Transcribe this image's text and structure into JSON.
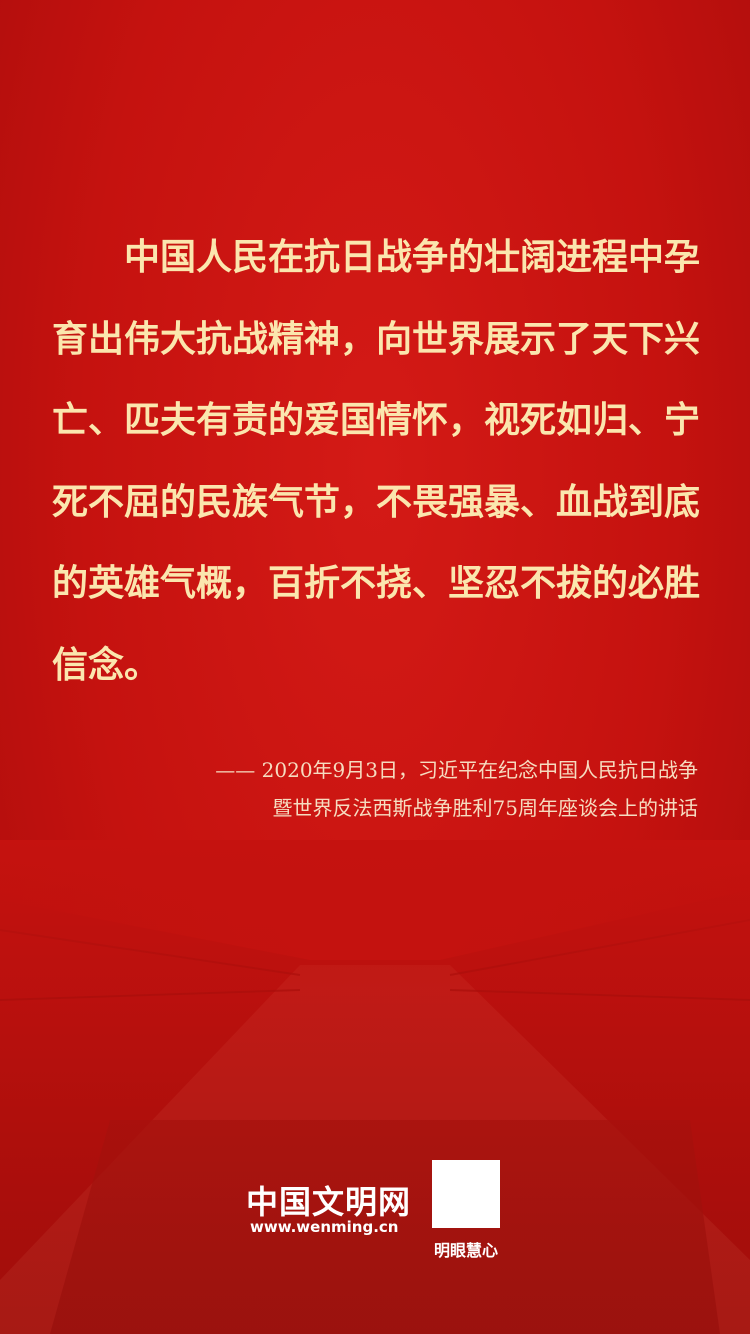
{
  "quote": {
    "lines": [
      "中国人民在抗日战争的壮阔进程中孕",
      "育出伟大抗战精神，向世界展示了天下兴",
      "亡、匹夫有责的爱国情怀，视死如归、宁",
      "死不屈的民族气节，不畏强暴、血战到底",
      "的英雄气概，百折不挠、坚忍不拔的必胜",
      "信念。"
    ]
  },
  "source": {
    "lines": [
      "—— 2020年9月3日，习近平在纪念中国人民抗日战争",
      "暨世界反法西斯战争胜利75周年座谈会上的讲话"
    ]
  },
  "footer": {
    "logo": "中国文明网",
    "url": "www.wenming.cn",
    "qr_caption": "明眼慧心"
  }
}
